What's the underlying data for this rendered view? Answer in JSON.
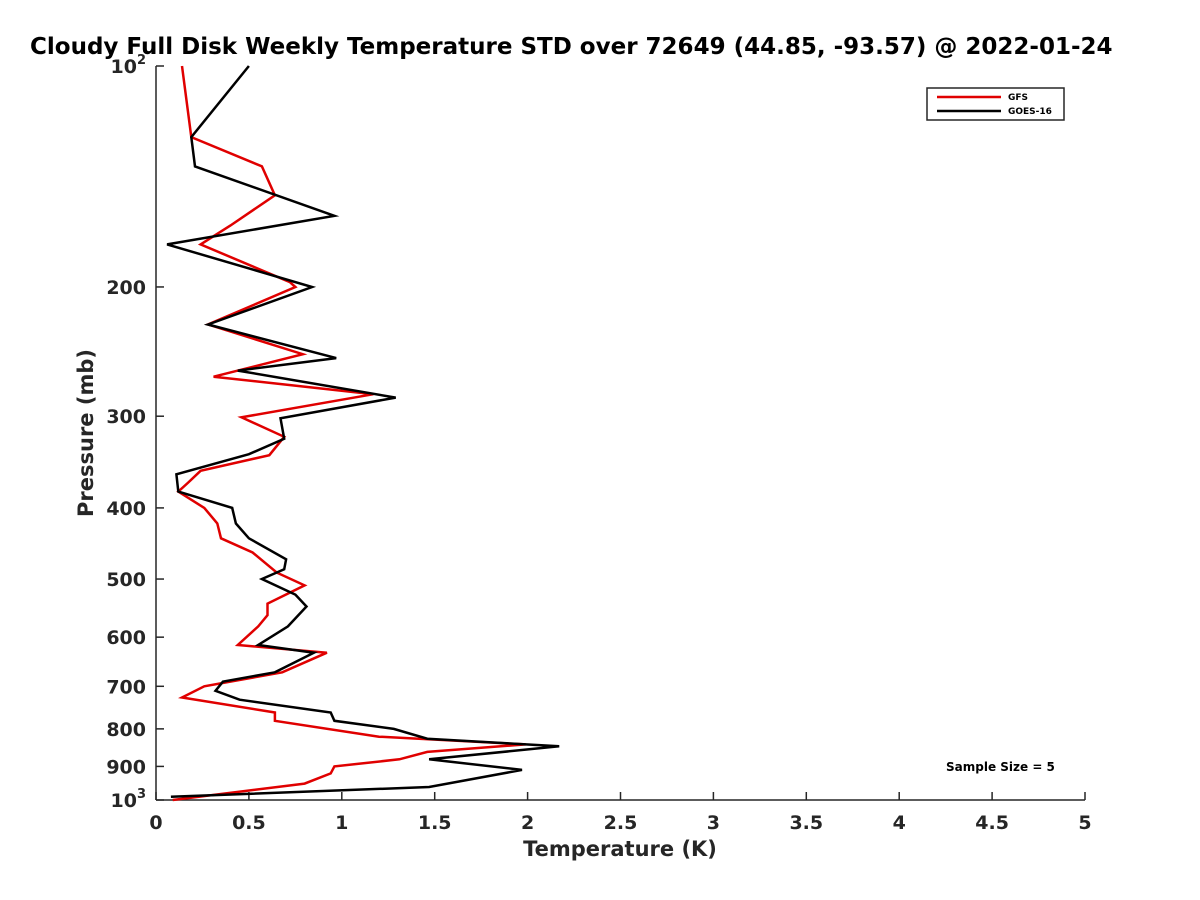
{
  "chart_data": {
    "type": "line",
    "title": "Cloudy Full Disk Weekly Temperature STD over 72649 (44.85, -93.57) @ 2022-01-24",
    "xlabel": "Temperature (K)",
    "ylabel": "Pressure (mb)",
    "xlim": [
      0,
      5
    ],
    "ylim": [
      100,
      1000
    ],
    "y_scale": "log",
    "y_reversed": true,
    "grid": false,
    "legend_position": "top-right",
    "x_ticks": [
      "0",
      "0.5",
      "1",
      "1.5",
      "2",
      "2.5",
      "3",
      "3.5",
      "4",
      "4.5",
      "5"
    ],
    "y_ticks": [
      {
        "value": 100,
        "base": "10",
        "exp": "2"
      },
      {
        "value": 200,
        "label": "200"
      },
      {
        "value": 300,
        "label": "300"
      },
      {
        "value": 400,
        "label": "400"
      },
      {
        "value": 500,
        "label": "500"
      },
      {
        "value": 600,
        "label": "600"
      },
      {
        "value": 700,
        "label": "700"
      },
      {
        "value": 800,
        "label": "800"
      },
      {
        "value": 900,
        "label": "900"
      },
      {
        "value": 1000,
        "base": "10",
        "exp": "3"
      }
    ],
    "annotation": "Sample Size = 5",
    "series": [
      {
        "name": "GFS",
        "color": "#e00000",
        "points": [
          [
            0.14,
            100
          ],
          [
            0.19,
            125
          ],
          [
            0.57,
            137
          ],
          [
            0.64,
            150
          ],
          [
            0.4,
            165
          ],
          [
            0.24,
            175
          ],
          [
            0.72,
            197
          ],
          [
            0.75,
            200
          ],
          [
            0.28,
            225
          ],
          [
            0.79,
            247
          ],
          [
            0.31,
            265
          ],
          [
            1.17,
            280
          ],
          [
            0.46,
            301
          ],
          [
            0.69,
            320
          ],
          [
            0.61,
            339
          ],
          [
            0.24,
            356
          ],
          [
            0.17,
            370
          ],
          [
            0.12,
            380
          ],
          [
            0.26,
            400
          ],
          [
            0.33,
            420
          ],
          [
            0.35,
            440
          ],
          [
            0.52,
            460
          ],
          [
            0.65,
            490
          ],
          [
            0.8,
            510
          ],
          [
            0.6,
            540
          ],
          [
            0.6,
            560
          ],
          [
            0.55,
            580
          ],
          [
            0.44,
            615
          ],
          [
            0.92,
            630
          ],
          [
            0.68,
            670
          ],
          [
            0.26,
            700
          ],
          [
            0.14,
            725
          ],
          [
            0.64,
            760
          ],
          [
            0.64,
            780
          ],
          [
            1.2,
            820
          ],
          [
            1.99,
            840
          ],
          [
            1.46,
            860
          ],
          [
            1.31,
            880
          ],
          [
            0.96,
            900
          ],
          [
            0.94,
            920
          ],
          [
            0.8,
            950
          ],
          [
            0.09,
            1000
          ]
        ]
      },
      {
        "name": "GOES-16",
        "color": "#000000",
        "points": [
          [
            0.5,
            100
          ],
          [
            0.19,
            125
          ],
          [
            0.21,
            137
          ],
          [
            0.96,
            160
          ],
          [
            0.06,
            175
          ],
          [
            0.84,
            200
          ],
          [
            0.28,
            225
          ],
          [
            0.97,
            250
          ],
          [
            0.44,
            260
          ],
          [
            1.29,
            283
          ],
          [
            0.67,
            302
          ],
          [
            0.69,
            322
          ],
          [
            0.5,
            338
          ],
          [
            0.11,
            360
          ],
          [
            0.12,
            380
          ],
          [
            0.41,
            400
          ],
          [
            0.43,
            420
          ],
          [
            0.5,
            440
          ],
          [
            0.7,
            470
          ],
          [
            0.69,
            485
          ],
          [
            0.57,
            500
          ],
          [
            0.75,
            525
          ],
          [
            0.81,
            545
          ],
          [
            0.71,
            580
          ],
          [
            0.55,
            615
          ],
          [
            0.85,
            630
          ],
          [
            0.64,
            670
          ],
          [
            0.36,
            690
          ],
          [
            0.32,
            710
          ],
          [
            0.45,
            730
          ],
          [
            0.94,
            760
          ],
          [
            0.96,
            780
          ],
          [
            1.28,
            800
          ],
          [
            1.46,
            825
          ],
          [
            2.17,
            845
          ],
          [
            1.47,
            880
          ],
          [
            1.97,
            910
          ],
          [
            1.47,
            960
          ],
          [
            0.08,
            990
          ]
        ]
      }
    ]
  }
}
